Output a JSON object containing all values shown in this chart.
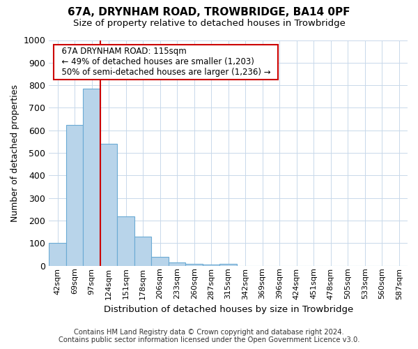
{
  "title": "67A, DRYNHAM ROAD, TROWBRIDGE, BA14 0PF",
  "subtitle": "Size of property relative to detached houses in Trowbridge",
  "xlabel": "Distribution of detached houses by size in Trowbridge",
  "ylabel": "Number of detached properties",
  "footer_line1": "Contains HM Land Registry data © Crown copyright and database right 2024.",
  "footer_line2": "Contains public sector information licensed under the Open Government Licence v3.0.",
  "annotation_title": "67A DRYNHAM ROAD: 115sqm",
  "annotation_line1": "← 49% of detached houses are smaller (1,203)",
  "annotation_line2": "50% of semi-detached houses are larger (1,236) →",
  "bar_categories": [
    "42sqm",
    "69sqm",
    "97sqm",
    "124sqm",
    "151sqm",
    "178sqm",
    "206sqm",
    "233sqm",
    "260sqm",
    "287sqm",
    "315sqm",
    "342sqm",
    "369sqm",
    "396sqm",
    "424sqm",
    "451sqm",
    "478sqm",
    "505sqm",
    "533sqm",
    "560sqm",
    "587sqm"
  ],
  "bar_values": [
    100,
    625,
    785,
    540,
    220,
    130,
    40,
    15,
    10,
    5,
    10,
    0,
    0,
    0,
    0,
    0,
    0,
    0,
    0,
    0,
    0
  ],
  "bar_color": "#b8d4ea",
  "bar_edge_color": "#6aaad4",
  "vline_color": "#cc0000",
  "annotation_box_color": "#cc0000",
  "background_color": "#ffffff",
  "grid_color": "#c8d8ea",
  "ylim": [
    0,
    1000
  ],
  "yticks": [
    0,
    100,
    200,
    300,
    400,
    500,
    600,
    700,
    800,
    900,
    1000
  ],
  "vline_position": 2.67
}
